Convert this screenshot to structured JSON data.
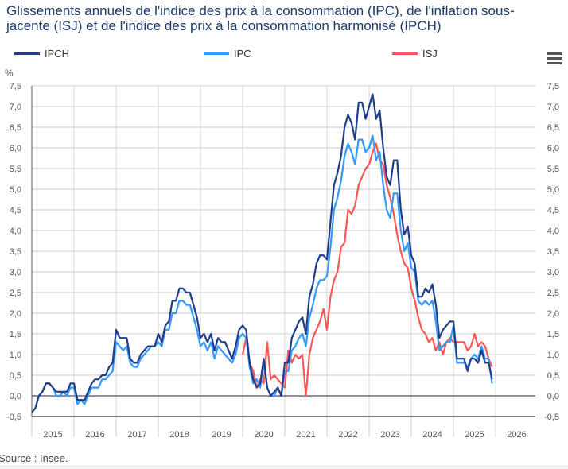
{
  "title": "Glissements annuels de l'indice des prix à la consommation (IPC), de l'inflation sous-jacente (ISJ) et de l'indice des prix à la consommation harmonisé (IPCH)",
  "menu_icon": "hamburger-menu-icon",
  "source": "Source : Insee.",
  "chart_data": {
    "type": "line",
    "title": "Glissements annuels de l'indice des prix à la consommation (IPC), de l'inflation sous-jacente (ISJ) et de l'indice des prix à la consommation harmonisé (IPCH)",
    "ylabel": "%",
    "xlabel": "",
    "ylim": [
      -0.5,
      7.5
    ],
    "yticks": [
      "-0,5",
      "0,0",
      "0,5",
      "1,0",
      "1,5",
      "2,0",
      "2,5",
      "3,0",
      "3,5",
      "4,0",
      "4,5",
      "5,0",
      "5,5",
      "6,0",
      "6,5",
      "7,0",
      "7,5"
    ],
    "ytick_values": [
      -0.5,
      0,
      0.5,
      1,
      1.5,
      2,
      2.5,
      3,
      3.5,
      4,
      4.5,
      5,
      5.5,
      6,
      6.5,
      7,
      7.5
    ],
    "x_categories": [
      "2015",
      "2016",
      "2017",
      "2018",
      "2019",
      "2020",
      "2021",
      "2022",
      "2023",
      "2024",
      "2025",
      "2026"
    ],
    "x_start": "2015-01",
    "frequency": "monthly",
    "grid": true,
    "legend_position": "top",
    "series": [
      {
        "name": "IPCH",
        "color": "#1f3c88",
        "start_index": 0,
        "values": [
          -0.4,
          -0.3,
          0.0,
          0.1,
          0.3,
          0.3,
          0.2,
          0.1,
          0.1,
          0.1,
          0.1,
          0.3,
          0.3,
          -0.1,
          -0.1,
          -0.1,
          0.1,
          0.3,
          0.4,
          0.4,
          0.5,
          0.5,
          0.7,
          0.8,
          1.6,
          1.4,
          1.4,
          1.4,
          0.9,
          0.8,
          0.8,
          1.0,
          1.1,
          1.2,
          1.2,
          1.2,
          1.5,
          1.3,
          1.7,
          1.8,
          2.3,
          2.3,
          2.6,
          2.6,
          2.5,
          2.5,
          2.2,
          1.9,
          1.4,
          1.5,
          1.3,
          1.5,
          1.1,
          1.4,
          1.3,
          1.3,
          1.1,
          0.9,
          1.2,
          1.6,
          1.7,
          1.6,
          0.8,
          0.4,
          0.2,
          0.3,
          0.9,
          0.2,
          0.0,
          0.1,
          0.2,
          0.0,
          0.8,
          0.8,
          1.4,
          1.6,
          1.8,
          1.9,
          1.5,
          2.4,
          2.7,
          3.2,
          3.4,
          3.4,
          3.3,
          4.2,
          5.1,
          5.4,
          5.8,
          6.5,
          6.8,
          6.6,
          6.2,
          7.1,
          7.1,
          6.7,
          7.0,
          7.3,
          6.7,
          6.9,
          6.0,
          5.3,
          5.1,
          5.7,
          5.7,
          4.5,
          3.9,
          4.1,
          3.4,
          3.2,
          2.4,
          2.4,
          2.6,
          2.5,
          2.7,
          2.2,
          1.4,
          1.6,
          1.7,
          1.8,
          1.8,
          0.9,
          0.9,
          0.9,
          0.6,
          0.9,
          0.9,
          0.8,
          1.1,
          0.8,
          0.8,
          0.4
        ]
      },
      {
        "name": "IPC",
        "color": "#3399ff",
        "start_index": 0,
        "values": [
          -0.4,
          -0.3,
          0.0,
          0.1,
          0.3,
          0.3,
          0.2,
          0.0,
          0.0,
          0.1,
          0.0,
          0.2,
          0.2,
          -0.2,
          -0.1,
          -0.2,
          0.0,
          0.2,
          0.2,
          0.2,
          0.4,
          0.4,
          0.5,
          0.6,
          1.3,
          1.2,
          1.1,
          1.2,
          0.8,
          0.7,
          0.7,
          0.9,
          1.0,
          1.1,
          1.2,
          1.2,
          1.3,
          1.2,
          1.6,
          1.6,
          2.0,
          2.0,
          2.3,
          2.3,
          2.2,
          2.2,
          1.9,
          1.6,
          1.2,
          1.3,
          1.1,
          1.3,
          0.9,
          1.2,
          1.1,
          1.0,
          0.9,
          0.8,
          1.0,
          1.4,
          1.5,
          1.4,
          0.7,
          0.3,
          0.4,
          0.2,
          0.8,
          0.2,
          0.0,
          0.0,
          0.2,
          0.0,
          0.6,
          0.6,
          1.1,
          1.2,
          1.4,
          1.5,
          1.2,
          1.9,
          2.2,
          2.6,
          2.8,
          2.8,
          2.9,
          3.6,
          4.5,
          4.8,
          5.2,
          5.8,
          6.1,
          5.9,
          5.6,
          6.2,
          6.2,
          5.9,
          6.0,
          6.3,
          5.7,
          5.9,
          5.1,
          4.5,
          4.3,
          4.9,
          4.9,
          4.0,
          3.5,
          3.7,
          3.1,
          3.0,
          2.3,
          2.2,
          2.3,
          2.2,
          2.3,
          1.8,
          1.1,
          1.2,
          1.3,
          1.3,
          1.7,
          0.8,
          0.8,
          0.8,
          0.7,
          0.9,
          1.0,
          0.9,
          1.2,
          0.9,
          0.9,
          0.3
        ]
      },
      {
        "name": "ISJ",
        "color": "#ff5555",
        "start_index": 60,
        "values": [
          1.0,
          1.4,
          0.8,
          0.6,
          0.2,
          0.4,
          0.3,
          1.3,
          0.4,
          0.5,
          0.4,
          0.3,
          0.2,
          1.1,
          0.8,
          1.0,
          0.9,
          1.0,
          0.0,
          1.0,
          1.4,
          1.6,
          1.8,
          2.1,
          1.6,
          2.4,
          2.8,
          3.0,
          3.6,
          3.7,
          4.5,
          4.4,
          4.6,
          5.1,
          5.3,
          5.5,
          5.6,
          5.9,
          6.1,
          5.7,
          5.6,
          5.1,
          4.8,
          4.4,
          3.9,
          3.5,
          3.2,
          3.1,
          2.6,
          2.3,
          1.9,
          1.6,
          1.5,
          1.3,
          1.4,
          1.1,
          1.3,
          1.0,
          1.3,
          1.4,
          1.3,
          1.3,
          1.3,
          1.3,
          1.1,
          1.2,
          1.5,
          1.2,
          1.3,
          1.2,
          0.9,
          0.7
        ]
      }
    ]
  }
}
